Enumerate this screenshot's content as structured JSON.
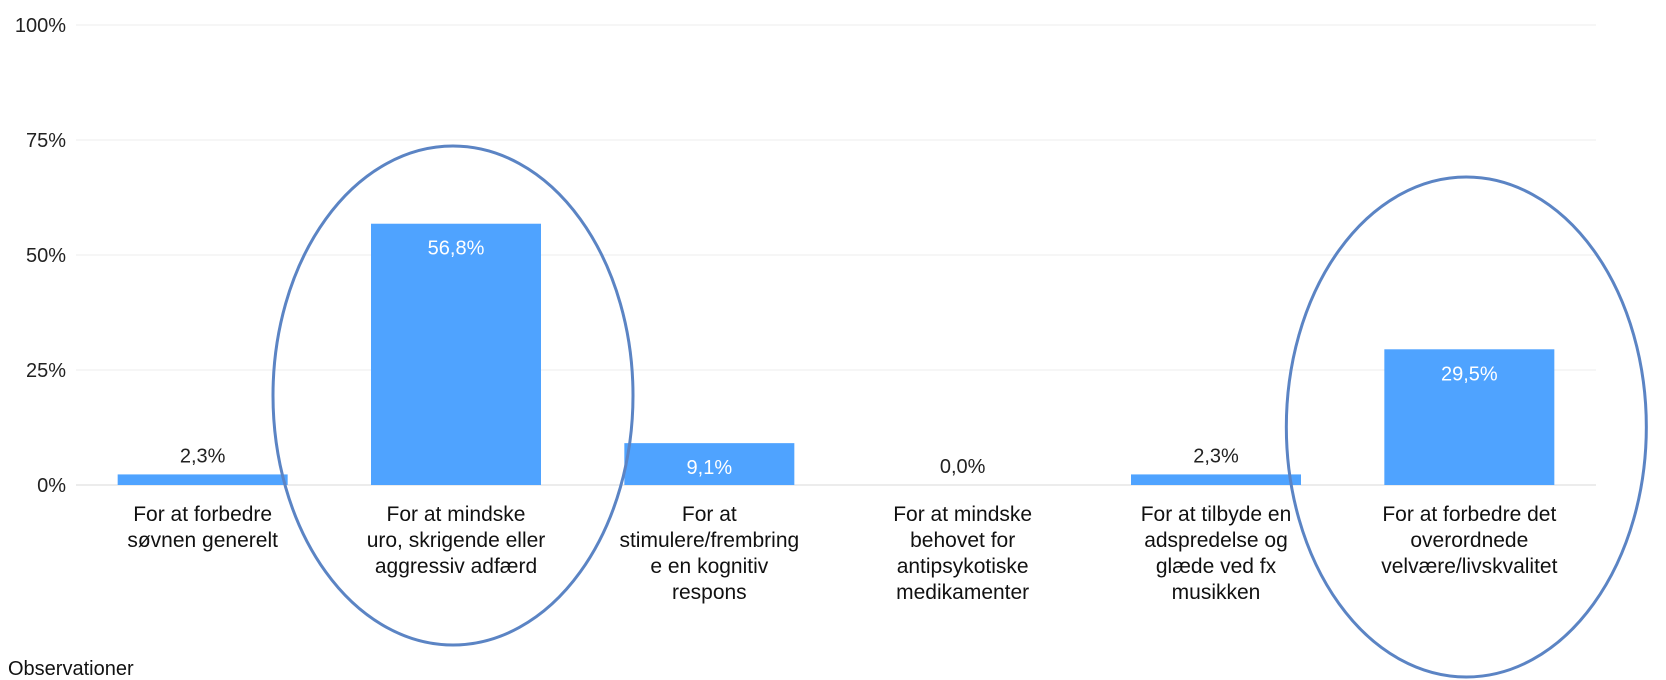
{
  "chart_data": {
    "type": "bar",
    "categories": [
      [
        "For at forbedre",
        "søvnen generelt"
      ],
      [
        "For at mindske",
        "uro, skrigende eller",
        "aggressiv adfærd"
      ],
      [
        "For at",
        "stimulere/frembring",
        "e en kognitiv",
        "respons"
      ],
      [
        "For at mindske",
        "behovet for",
        "antipsykotiske",
        "medikamenter"
      ],
      [
        "For at tilbyde en",
        "adspredelse og",
        "glæde ved fx",
        "musikken"
      ],
      [
        "For at forbedre det",
        "overordnede",
        "velvære/livskvalitet"
      ]
    ],
    "values": [
      2.3,
      56.8,
      9.1,
      0.0,
      2.3,
      29.5
    ],
    "data_labels": [
      "2,3%",
      "56,8%",
      "9,1%",
      "0,0%",
      "2,3%",
      "29,5%"
    ],
    "y_ticks": [
      0,
      25,
      50,
      75,
      100
    ],
    "y_tick_labels": [
      "0%",
      "25%",
      "50%",
      "75%",
      "100%"
    ],
    "ylim": [
      0,
      100
    ],
    "grid": true,
    "bar_color": "#4fa3ff",
    "highlight_color": "#5b84c4",
    "highlighted_categories": [
      1,
      5
    ]
  },
  "footer": {
    "label": "Observationer"
  }
}
